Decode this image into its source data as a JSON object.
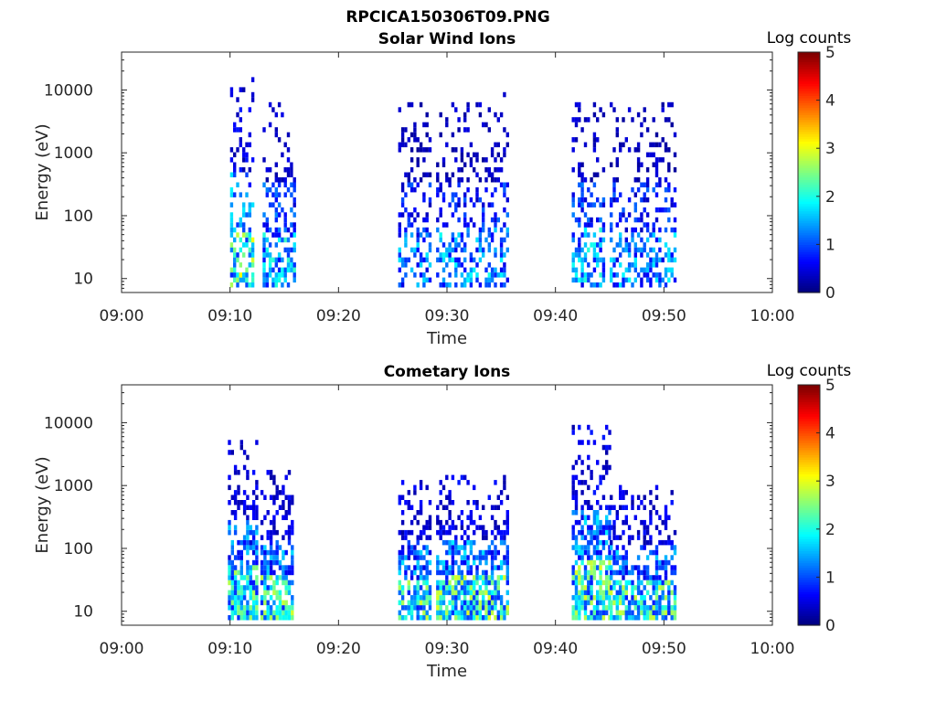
{
  "figure": {
    "title": "RPCICA150306T09.PNG"
  },
  "chart_data": [
    {
      "type": "heatmap",
      "title": "Solar Wind Ions",
      "xlabel": "Time",
      "ylabel": "Energy (eV)",
      "x_tick_labels": [
        "09:00",
        "09:10",
        "09:20",
        "09:30",
        "09:40",
        "09:50",
        "10:00"
      ],
      "x_range_minutes": [
        0,
        60
      ],
      "y_scale": "log",
      "y_range": [
        6,
        40000
      ],
      "y_ticks": [
        10,
        100,
        1000,
        10000
      ],
      "y_tick_labels": [
        "10",
        "100",
        "1000",
        "10000"
      ],
      "colorbar": {
        "label": "Log counts",
        "range": [
          0,
          5
        ],
        "ticks": [
          "0",
          "1",
          "2",
          "3",
          "4",
          "5"
        ],
        "colormap": "jet"
      },
      "series": [
        {
          "t_start": 10.0,
          "t_end": 12.0,
          "e_min": 7,
          "e_max": 16000,
          "peak_log": 3.1
        },
        {
          "t_start": 13.0,
          "t_end": 15.8,
          "e_min": 7,
          "e_max": 7000,
          "peak_log": 2.2
        },
        {
          "t_start": 25.5,
          "t_end": 28.5,
          "e_min": 7,
          "e_max": 8000,
          "peak_log": 1.8
        },
        {
          "t_start": 29.0,
          "t_end": 35.5,
          "e_min": 7,
          "e_max": 9500,
          "peak_log": 2.0
        },
        {
          "t_start": 41.5,
          "t_end": 44.5,
          "e_min": 7,
          "e_max": 9500,
          "peak_log": 2.1
        },
        {
          "t_start": 45.0,
          "t_end": 51.0,
          "e_min": 7,
          "e_max": 7000,
          "peak_log": 1.9
        }
      ]
    },
    {
      "type": "heatmap",
      "title": "Cometary Ions",
      "xlabel": "Time",
      "ylabel": "Energy (eV)",
      "x_tick_labels": [
        "09:00",
        "09:10",
        "09:20",
        "09:30",
        "09:40",
        "09:50",
        "10:00"
      ],
      "x_range_minutes": [
        0,
        60
      ],
      "y_scale": "log",
      "y_range": [
        6,
        40000
      ],
      "y_ticks": [
        10,
        100,
        1000,
        10000
      ],
      "y_tick_labels": [
        "10",
        "100",
        "1000",
        "10000"
      ],
      "colorbar": {
        "label": "Log counts",
        "range": [
          0,
          5
        ],
        "ticks": [
          "0",
          "1",
          "2",
          "3",
          "4",
          "5"
        ],
        "colormap": "jet"
      },
      "series": [
        {
          "t_start": 9.8,
          "t_end": 12.5,
          "e_min": 7,
          "e_max": 5000,
          "peak_log": 2.8
        },
        {
          "t_start": 12.8,
          "t_end": 15.8,
          "e_min": 7,
          "e_max": 1700,
          "peak_log": 2.9
        },
        {
          "t_start": 25.5,
          "t_end": 28.5,
          "e_min": 7,
          "e_max": 1300,
          "peak_log": 2.9
        },
        {
          "t_start": 29.0,
          "t_end": 35.5,
          "e_min": 7,
          "e_max": 1500,
          "peak_log": 3.0
        },
        {
          "t_start": 41.5,
          "t_end": 45.0,
          "e_min": 7,
          "e_max": 10000,
          "peak_log": 3.0
        },
        {
          "t_start": 45.0,
          "t_end": 51.0,
          "e_min": 7,
          "e_max": 1000,
          "peak_log": 2.9
        }
      ]
    }
  ]
}
